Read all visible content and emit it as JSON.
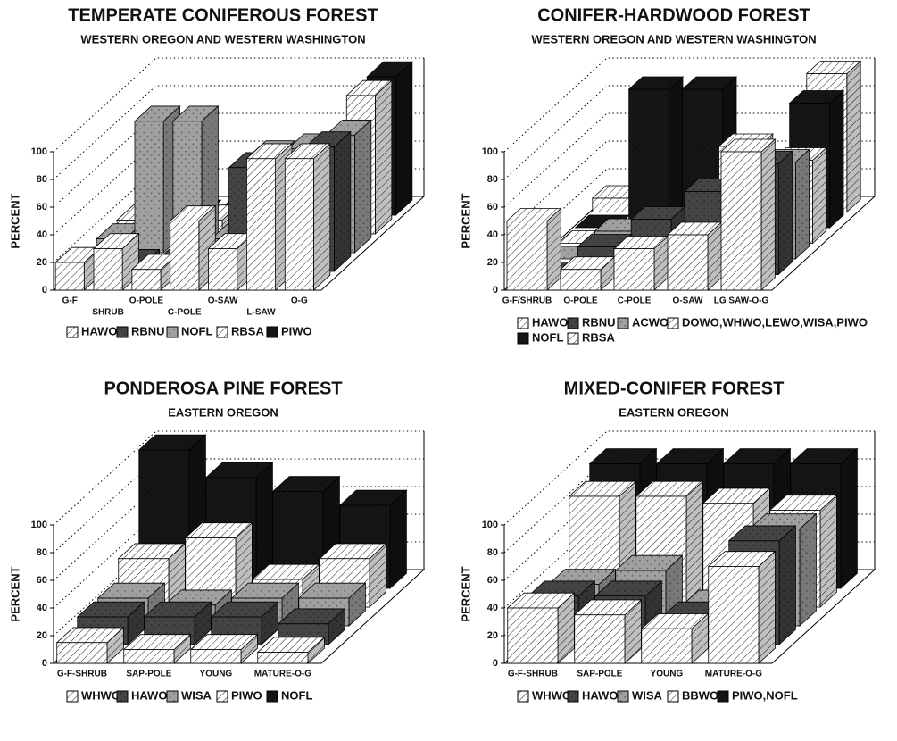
{
  "chart_data": [
    {
      "type": "bar3d",
      "title": "TEMPERATE CONIFEROUS FOREST",
      "subtitle": "WESTERN OREGON AND WESTERN WASHINGTON",
      "ylabel": "PERCENT",
      "categories": [
        "G-F",
        "SHRUB",
        "O-POLE",
        "C-POLE",
        "O-SAW",
        "L-SAW",
        "O-G"
      ],
      "series": [
        {
          "name": "HAWO",
          "color": "#ffffff",
          "hatch": true,
          "values": [
            20,
            30,
            15,
            50,
            30,
            95,
            95
          ]
        },
        {
          "name": "RBNU",
          "color": "#444444",
          "hatch": false,
          "values": [
            5,
            5,
            5,
            5,
            75,
            45,
            90
          ]
        },
        {
          "name": "NOFL",
          "color": "#a0a0a0",
          "hatch": false,
          "values": [
            10,
            95,
            95,
            10,
            70,
            75,
            85
          ]
        },
        {
          "name": "RBSA",
          "color": "#ffffff",
          "hatch": true,
          "values": [
            10,
            10,
            10,
            10,
            10,
            10,
            100
          ]
        },
        {
          "name": "PIWO",
          "color": "#151515",
          "hatch": false,
          "values": [
            0,
            0,
            0,
            0,
            10,
            10,
            100
          ]
        }
      ],
      "ylim": [
        0,
        100
      ],
      "yticks": [
        0,
        20,
        40,
        60,
        80,
        100
      ],
      "grid": true
    },
    {
      "type": "bar3d",
      "title": "CONIFER-HARDWOOD FOREST",
      "subtitle": "WESTERN OREGON AND WESTERN WASHINGTON",
      "ylabel": "PERCENT",
      "categories": [
        "G-F/SHRUB",
        "O-POLE",
        "C-POLE",
        "O-SAW",
        "LG SAW-O-G"
      ],
      "series": [
        {
          "name": "HAWO",
          "color": "#ffffff",
          "hatch": true,
          "values": [
            50,
            15,
            30,
            40,
            100
          ]
        },
        {
          "name": "RBNU",
          "color": "#444444",
          "hatch": false,
          "values": [
            0,
            20,
            40,
            60,
            80
          ]
        },
        {
          "name": "ACWO",
          "color": "#a0a0a0",
          "hatch": false,
          "values": [
            0,
            20,
            10,
            30,
            70
          ]
        },
        {
          "name": "DOWO,WHWO,LEWO,WISA,PIWO",
          "color": "#ffffff",
          "hatch": true,
          "values": [
            0,
            0,
            0,
            70,
            60
          ]
        },
        {
          "name": "NOFL",
          "color": "#151515",
          "hatch": false,
          "values": [
            0,
            100,
            100,
            0,
            90
          ]
        },
        {
          "name": "RBSA",
          "color": "#ffffff",
          "hatch": true,
          "values": [
            10,
            10,
            10,
            10,
            100
          ]
        }
      ],
      "ylim": [
        0,
        100
      ],
      "yticks": [
        0,
        20,
        40,
        60,
        80,
        100
      ],
      "grid": true
    },
    {
      "type": "bar3d",
      "title": "PONDEROSA PINE FOREST",
      "subtitle": "EASTERN OREGON",
      "ylabel": "PERCENT",
      "categories": [
        "G-F-SHRUB",
        "SAP-POLE",
        "YOUNG",
        "MATURE-O-G"
      ],
      "series": [
        {
          "name": "WHWO",
          "color": "#ffffff",
          "hatch": true,
          "values": [
            15,
            10,
            10,
            8
          ]
        },
        {
          "name": "HAWO",
          "color": "#444444",
          "hatch": false,
          "values": [
            20,
            20,
            20,
            15
          ]
        },
        {
          "name": "WISA",
          "color": "#a0a0a0",
          "hatch": false,
          "values": [
            20,
            15,
            20,
            20
          ]
        },
        {
          "name": "PIWO",
          "color": "#ffffff",
          "hatch": true,
          "values": [
            35,
            50,
            20,
            35
          ]
        },
        {
          "name": "NOFL",
          "color": "#151515",
          "hatch": false,
          "values": [
            100,
            80,
            70,
            60
          ]
        }
      ],
      "ylim": [
        0,
        100
      ],
      "yticks": [
        0,
        20,
        40,
        60,
        80,
        100
      ],
      "grid": true
    },
    {
      "type": "bar3d",
      "title": "MIXED-CONIFER FOREST",
      "subtitle": "EASTERN OREGON",
      "ylabel": "PERCENT",
      "categories": [
        "G-F-SHRUB",
        "SAP-POLE",
        "YOUNG",
        "MATURE-O-G"
      ],
      "series": [
        {
          "name": "WHWO",
          "color": "#ffffff",
          "hatch": true,
          "values": [
            40,
            35,
            25,
            70
          ]
        },
        {
          "name": "HAWO",
          "color": "#444444",
          "hatch": false,
          "values": [
            35,
            35,
            20,
            75
          ]
        },
        {
          "name": "WISA",
          "color": "#a0a0a0",
          "hatch": false,
          "values": [
            30,
            40,
            15,
            70
          ]
        },
        {
          "name": "BBWO",
          "color": "#ffffff",
          "hatch": true,
          "values": [
            80,
            80,
            75,
            70
          ]
        },
        {
          "name": "PIWO,NOFL",
          "color": "#151515",
          "hatch": false,
          "values": [
            90,
            90,
            90,
            90
          ]
        }
      ],
      "ylim": [
        0,
        100
      ],
      "yticks": [
        0,
        20,
        40,
        60,
        80,
        100
      ],
      "grid": true
    }
  ]
}
